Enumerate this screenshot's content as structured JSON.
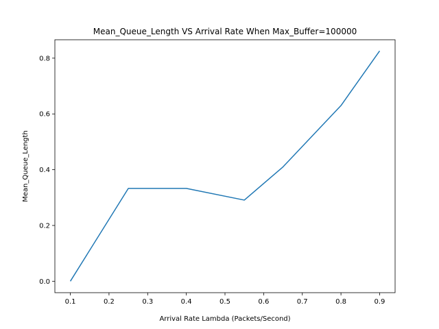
{
  "chart_data": {
    "type": "line",
    "title": "Mean_Queue_Length VS Arrival Rate When Max_Buffer=100000",
    "xlabel": "Arrival Rate Lambda (Packets/Second)",
    "ylabel": "Mean_Queue_Length",
    "xlim": [
      0.06,
      0.94
    ],
    "ylim": [
      -0.041,
      0.866
    ],
    "xticks": [
      "0.1",
      "0.2",
      "0.3",
      "0.4",
      "0.5",
      "0.6",
      "0.7",
      "0.8",
      "0.9"
    ],
    "yticks": [
      "0.0",
      "0.2",
      "0.4",
      "0.6",
      "0.8"
    ],
    "grid": false,
    "series": [
      {
        "color": "#1f77b4",
        "x": [
          0.1,
          0.25,
          0.4,
          0.55,
          0.65,
          0.8,
          0.9
        ],
        "y": [
          0.0,
          0.333,
          0.333,
          0.291,
          0.41,
          0.63,
          0.826
        ]
      }
    ]
  }
}
